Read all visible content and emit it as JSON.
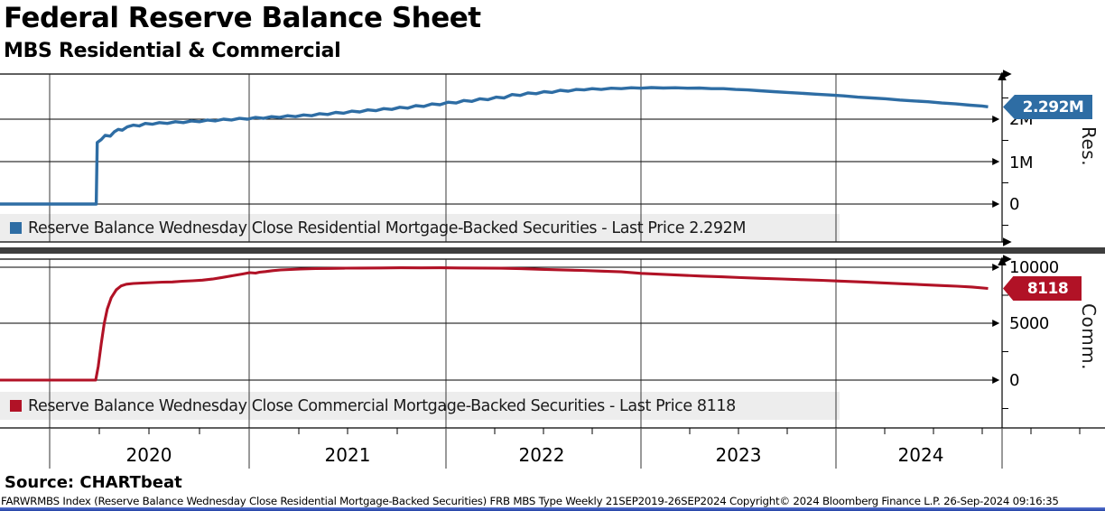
{
  "header": {
    "title": "Federal Reserve Balance Sheet",
    "subtitle": "MBS Residential & Commercial"
  },
  "source_label": "Source: CHARTbeat",
  "footer_text": "FARWRMBS Index (Reserve Balance Wednesday Close Residential Mortgage-Backed Securities) FRB MBS Type  Weekly 21SEP2019-26SEP2024 Copyright© 2024 Bloomberg Finance L.P. 26-Sep-2024 09:16:35",
  "x_axis": {
    "year_labels": [
      "2020",
      "2021",
      "2022",
      "2023",
      "2024"
    ]
  },
  "top_panel": {
    "axis_label": "Res.",
    "yticks": [
      "2M",
      "1M",
      "0"
    ],
    "last_price_badge": "2.292M",
    "legend": "Reserve Balance Wednesday Close Residential Mortgage-Backed Securities - Last Price 2.292M"
  },
  "bottom_panel": {
    "axis_label": "Comm.",
    "yticks": [
      "10000",
      "5000",
      "0"
    ],
    "last_price_badge": "8118",
    "legend": "Reserve Balance Wednesday Close Commercial Mortgage-Backed Securities - Last Price 8118"
  },
  "chart_data": [
    {
      "type": "line",
      "name": "Reserve Balance Wednesday Close Residential Mortgage-Backed Securities",
      "color": "#2e6da4",
      "unit": "millions",
      "last_price": "2.292M",
      "x_range": [
        "21SEP2019",
        "26SEP2024"
      ],
      "xticks": [
        "2020",
        "2021",
        "2022",
        "2023",
        "2024"
      ],
      "ytick_values": [
        0,
        1000000,
        2000000
      ],
      "ylim_millions": [
        -0.89,
        3.06
      ],
      "grid": true,
      "legend_position": "bottom-left",
      "points_note": "pairs of [x fraction of 21SEP2019-26SEP2024 span, value in millions]",
      "points": [
        [
          0,
          0
        ],
        [
          0.096,
          0
        ],
        [
          0.097,
          1.45
        ],
        [
          0.101,
          1.52
        ],
        [
          0.105,
          1.62
        ],
        [
          0.11,
          1.6
        ],
        [
          0.114,
          1.7
        ],
        [
          0.118,
          1.76
        ],
        [
          0.122,
          1.74
        ],
        [
          0.127,
          1.82
        ],
        [
          0.133,
          1.86
        ],
        [
          0.139,
          1.84
        ],
        [
          0.145,
          1.9
        ],
        [
          0.152,
          1.88
        ],
        [
          0.159,
          1.92
        ],
        [
          0.167,
          1.9
        ],
        [
          0.175,
          1.94
        ],
        [
          0.183,
          1.92
        ],
        [
          0.191,
          1.96
        ],
        [
          0.199,
          1.94
        ],
        [
          0.207,
          1.98
        ],
        [
          0.215,
          1.96
        ],
        [
          0.223,
          2.0
        ],
        [
          0.231,
          1.98
        ],
        [
          0.239,
          2.02
        ],
        [
          0.247,
          2.0
        ],
        [
          0.255,
          2.04
        ],
        [
          0.263,
          2.02
        ],
        [
          0.271,
          2.06
        ],
        [
          0.279,
          2.04
        ],
        [
          0.287,
          2.08
        ],
        [
          0.295,
          2.06
        ],
        [
          0.303,
          2.1
        ],
        [
          0.311,
          2.08
        ],
        [
          0.319,
          2.13
        ],
        [
          0.327,
          2.11
        ],
        [
          0.335,
          2.16
        ],
        [
          0.343,
          2.14
        ],
        [
          0.351,
          2.19
        ],
        [
          0.359,
          2.17
        ],
        [
          0.367,
          2.22
        ],
        [
          0.375,
          2.2
        ],
        [
          0.383,
          2.25
        ],
        [
          0.391,
          2.23
        ],
        [
          0.399,
          2.28
        ],
        [
          0.407,
          2.26
        ],
        [
          0.415,
          2.32
        ],
        [
          0.423,
          2.3
        ],
        [
          0.431,
          2.36
        ],
        [
          0.439,
          2.34
        ],
        [
          0.447,
          2.4
        ],
        [
          0.455,
          2.38
        ],
        [
          0.463,
          2.44
        ],
        [
          0.471,
          2.42
        ],
        [
          0.479,
          2.48
        ],
        [
          0.487,
          2.46
        ],
        [
          0.495,
          2.52
        ],
        [
          0.503,
          2.5
        ],
        [
          0.511,
          2.58
        ],
        [
          0.519,
          2.56
        ],
        [
          0.527,
          2.62
        ],
        [
          0.535,
          2.6
        ],
        [
          0.543,
          2.65
        ],
        [
          0.551,
          2.63
        ],
        [
          0.559,
          2.68
        ],
        [
          0.567,
          2.66
        ],
        [
          0.575,
          2.7
        ],
        [
          0.583,
          2.69
        ],
        [
          0.591,
          2.72
        ],
        [
          0.6,
          2.7
        ],
        [
          0.61,
          2.73
        ],
        [
          0.62,
          2.72
        ],
        [
          0.63,
          2.74
        ],
        [
          0.64,
          2.73
        ],
        [
          0.65,
          2.745
        ],
        [
          0.662,
          2.735
        ],
        [
          0.674,
          2.74
        ],
        [
          0.686,
          2.73
        ],
        [
          0.698,
          2.735
        ],
        [
          0.71,
          2.72
        ],
        [
          0.722,
          2.72
        ],
        [
          0.734,
          2.7
        ],
        [
          0.746,
          2.69
        ],
        [
          0.758,
          2.67
        ],
        [
          0.772,
          2.65
        ],
        [
          0.786,
          2.63
        ],
        [
          0.8,
          2.61
        ],
        [
          0.814,
          2.59
        ],
        [
          0.828,
          2.57
        ],
        [
          0.842,
          2.55
        ],
        [
          0.856,
          2.52
        ],
        [
          0.87,
          2.5
        ],
        [
          0.884,
          2.48
        ],
        [
          0.898,
          2.45
        ],
        [
          0.912,
          2.43
        ],
        [
          0.926,
          2.41
        ],
        [
          0.94,
          2.38
        ],
        [
          0.954,
          2.36
        ],
        [
          0.968,
          2.33
        ],
        [
          0.98,
          2.31
        ],
        [
          0.986,
          2.292
        ]
      ]
    },
    {
      "type": "line",
      "name": "Reserve Balance Wednesday Close Commercial Mortgage-Backed Securities",
      "color": "#b11226",
      "unit": "raw",
      "last_price": "8118",
      "x_range": [
        "21SEP2019",
        "26SEP2024"
      ],
      "xticks": [
        "2020",
        "2021",
        "2022",
        "2023",
        "2024"
      ],
      "ytick_values": [
        0,
        5000,
        10000
      ],
      "ylim": [
        -4240,
        10720
      ],
      "grid": true,
      "legend_position": "bottom-left",
      "points_note": "pairs of [x fraction of 21SEP2019-26SEP2024 span, value]",
      "points": [
        [
          0,
          0
        ],
        [
          0.0955,
          0
        ],
        [
          0.098,
          1200
        ],
        [
          0.101,
          3200
        ],
        [
          0.104,
          5000
        ],
        [
          0.107,
          6300
        ],
        [
          0.111,
          7300
        ],
        [
          0.116,
          8000
        ],
        [
          0.121,
          8350
        ],
        [
          0.126,
          8500
        ],
        [
          0.133,
          8560
        ],
        [
          0.142,
          8600
        ],
        [
          0.152,
          8640
        ],
        [
          0.162,
          8680
        ],
        [
          0.172,
          8700
        ],
        [
          0.182,
          8760
        ],
        [
          0.192,
          8800
        ],
        [
          0.202,
          8860
        ],
        [
          0.212,
          8950
        ],
        [
          0.222,
          9100
        ],
        [
          0.232,
          9250
        ],
        [
          0.242,
          9400
        ],
        [
          0.249,
          9520
        ],
        [
          0.255,
          9480
        ],
        [
          0.259,
          9560
        ],
        [
          0.265,
          9620
        ],
        [
          0.272,
          9700
        ],
        [
          0.28,
          9760
        ],
        [
          0.29,
          9800
        ],
        [
          0.3,
          9840
        ],
        [
          0.315,
          9880
        ],
        [
          0.33,
          9900
        ],
        [
          0.345,
          9920
        ],
        [
          0.36,
          9930
        ],
        [
          0.38,
          9940
        ],
        [
          0.4,
          9950
        ],
        [
          0.42,
          9945
        ],
        [
          0.44,
          9950
        ],
        [
          0.46,
          9940
        ],
        [
          0.48,
          9930
        ],
        [
          0.5,
          9910
        ],
        [
          0.52,
          9870
        ],
        [
          0.54,
          9820
        ],
        [
          0.56,
          9770
        ],
        [
          0.58,
          9720
        ],
        [
          0.6,
          9660
        ],
        [
          0.62,
          9590
        ],
        [
          0.64,
          9460
        ],
        [
          0.66,
          9380
        ],
        [
          0.68,
          9300
        ],
        [
          0.7,
          9220
        ],
        [
          0.72,
          9150
        ],
        [
          0.74,
          9080
        ],
        [
          0.76,
          9020
        ],
        [
          0.78,
          8960
        ],
        [
          0.8,
          8900
        ],
        [
          0.82,
          8840
        ],
        [
          0.84,
          8770
        ],
        [
          0.86,
          8700
        ],
        [
          0.88,
          8620
        ],
        [
          0.9,
          8540
        ],
        [
          0.92,
          8460
        ],
        [
          0.94,
          8380
        ],
        [
          0.955,
          8320
        ],
        [
          0.97,
          8250
        ],
        [
          0.986,
          8118
        ]
      ]
    }
  ]
}
